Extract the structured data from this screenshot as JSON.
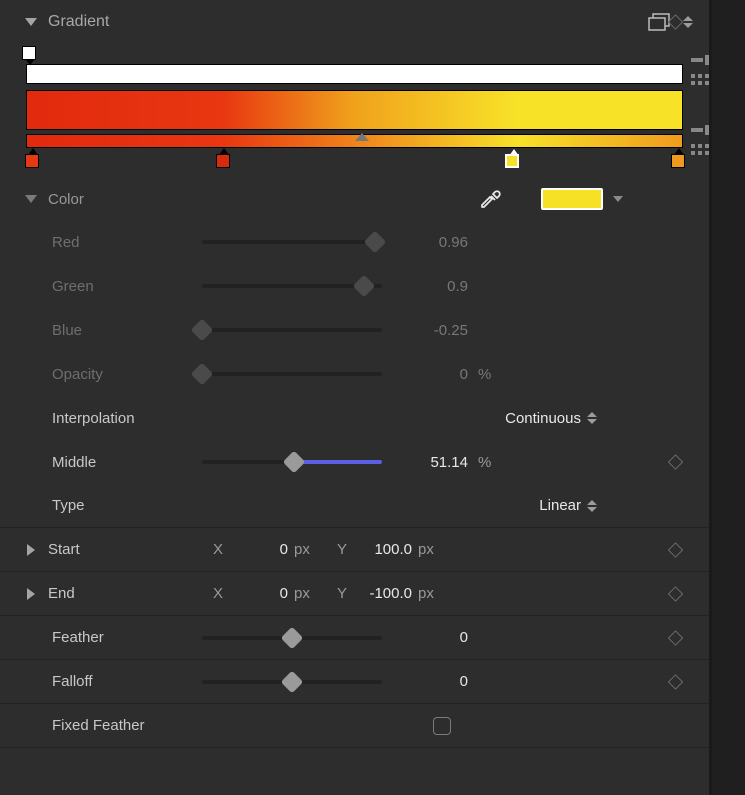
{
  "header": {
    "title": "Gradient"
  },
  "gradient": {
    "opacity_bar_color": "#ffffff",
    "color_bar_css": "linear-gradient(90deg, #e22a0e 0%, #e83711 30%, #f0a21c 50%, #f8e228 75%, #f8e228 100%)",
    "stop_bar_css": "linear-gradient(90deg, #e22a0e 0%, #e83711 30%, #f8e228 75%, #f09a1e 100%)",
    "stops": [
      {
        "pos_pct": 0.9,
        "color": "#e6390f",
        "selected": false
      },
      {
        "pos_pct": 30.0,
        "color": "#d82a0c",
        "selected": false
      },
      {
        "pos_pct": 74.0,
        "color": "#f6e127",
        "selected": true
      },
      {
        "pos_pct": 99.2,
        "color": "#ef9a1d",
        "selected": false
      }
    ],
    "mid_arrow_pct": 51.14
  },
  "color": {
    "section": "Color",
    "swatch": "#f6e127",
    "red": {
      "label": "Red",
      "value": "0.96",
      "pct": 96
    },
    "green": {
      "label": "Green",
      "value": "0.9",
      "pct": 90
    },
    "blue": {
      "label": "Blue",
      "value": "-0.25",
      "pct": 0
    },
    "opacity": {
      "label": "Opacity",
      "value": "0",
      "unit": "%",
      "pct": 0
    }
  },
  "interpolation": {
    "label": "Interpolation",
    "value": "Continuous"
  },
  "middle": {
    "label": "Middle",
    "value": "51.14",
    "unit": "%",
    "pct": 51.14,
    "fill_color": "#5b5fe0"
  },
  "type": {
    "label": "Type",
    "value": "Linear"
  },
  "start": {
    "label": "Start",
    "x_label": "X",
    "x": "0",
    "x_unit": "px",
    "y_label": "Y",
    "y": "100.0",
    "y_unit": "px"
  },
  "end": {
    "label": "End",
    "x_label": "X",
    "x": "0",
    "x_unit": "px",
    "y_label": "Y",
    "y": "-100.0",
    "y_unit": "px"
  },
  "feather": {
    "label": "Feather",
    "value": "0",
    "pct": 50
  },
  "falloff": {
    "label": "Falloff",
    "value": "0",
    "pct": 50
  },
  "fixed_feather": {
    "label": "Fixed Feather",
    "checked": false
  }
}
